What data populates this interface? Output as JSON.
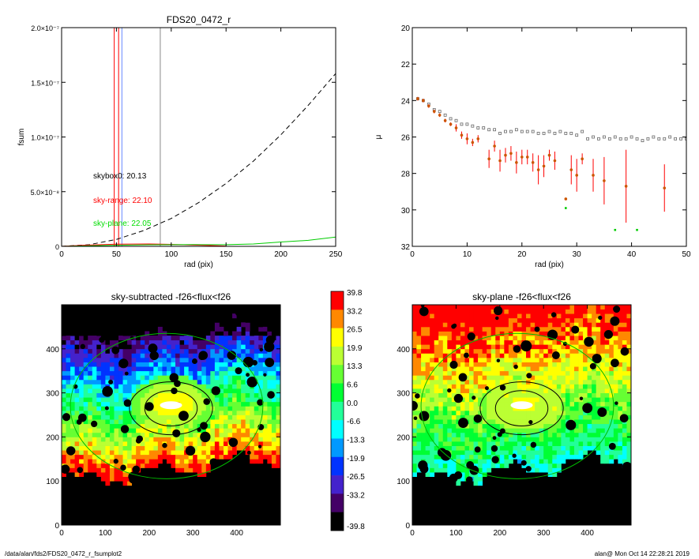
{
  "footer": {
    "path": "/data/alan/fds2/FDS20_0472_r_fsumplot2",
    "user_time": "alan@  Mon Oct 14 22:28:21 2019"
  },
  "chart_data": [
    {
      "type": "line",
      "title": "FDS20_0472_r",
      "xlabel": "rad (pix)",
      "ylabel": "fsum",
      "xlim": [
        0,
        250
      ],
      "ylim": [
        0,
        2e-07
      ],
      "x_ticks": [
        "0",
        "50",
        "100",
        "150",
        "200",
        "250"
      ],
      "y_ticks": [
        "0",
        "5.0×10⁻⁸",
        "1.0×10⁻⁷",
        "1.5×10⁻⁷",
        "2.0×10⁻⁷"
      ],
      "vlines": [
        {
          "x": 48,
          "color": "#ff0000"
        },
        {
          "x": 52,
          "color": "#ff0000"
        },
        {
          "x": 55,
          "color": "#6688ff"
        },
        {
          "x": 90,
          "color": "#888888"
        }
      ],
      "annotations": [
        {
          "text": "skybox0: 20.13",
          "color": "#000000"
        },
        {
          "text": "sky-range: 22.10",
          "color": "#ff0000"
        },
        {
          "text": "sky-plane: 22.05",
          "color": "#00dd00"
        }
      ],
      "series": [
        {
          "style": "dashed",
          "color": "#000000",
          "x": [
            0,
            25,
            50,
            75,
            100,
            125,
            150,
            175,
            200,
            225,
            250
          ],
          "y": [
            0,
            1.5e-09,
            6.3e-09,
            1.45e-08,
            2.55e-08,
            4e-08,
            5.75e-08,
            7.8e-08,
            1.02e-07,
            1.29e-07,
            1.58e-07
          ]
        },
        {
          "style": "solid",
          "color": "#ff0000",
          "x": [
            0,
            20,
            50,
            80,
            100,
            120,
            150
          ],
          "y": [
            0,
            1e-09,
            2e-09,
            2.2e-09,
            1.8e-09,
            1.2e-09,
            3e-10
          ]
        },
        {
          "style": "solid",
          "color": "#00cc00",
          "x": [
            0,
            40,
            80,
            120,
            150,
            175,
            200,
            225,
            250
          ],
          "y": [
            0,
            8e-10,
            1.4e-09,
            1.6e-09,
            1.5e-09,
            2.2e-09,
            4e-09,
            5.5e-09,
            8.5e-09
          ]
        }
      ]
    },
    {
      "type": "scatter",
      "title": "",
      "xlabel": "rad (pix)",
      "ylabel": "μ",
      "xlim": [
        0,
        50
      ],
      "ylim": [
        32,
        20
      ],
      "x_ticks": [
        "0",
        "10",
        "20",
        "30",
        "40",
        "50"
      ],
      "y_ticks": [
        "20",
        "22",
        "24",
        "26",
        "28",
        "30",
        "32"
      ],
      "series": [
        {
          "marker": "square-open",
          "color": "#666666",
          "x": [
            1,
            2,
            3,
            4,
            5,
            6,
            7,
            8,
            9,
            10,
            11,
            12,
            13,
            14,
            15,
            16,
            17,
            18,
            19,
            20,
            21,
            22,
            23,
            24,
            25,
            26,
            27,
            28,
            29,
            30,
            31,
            32,
            33,
            34,
            35,
            36,
            37,
            38,
            39,
            40,
            41,
            42,
            43,
            44,
            45,
            46,
            47,
            48,
            49,
            50
          ],
          "y": [
            23.9,
            24.0,
            24.2,
            24.5,
            24.6,
            24.8,
            25.0,
            25.1,
            25.3,
            25.3,
            25.4,
            25.5,
            25.5,
            25.6,
            25.6,
            25.8,
            25.7,
            25.7,
            25.6,
            25.7,
            25.7,
            25.7,
            25.8,
            25.8,
            25.7,
            25.8,
            25.7,
            25.8,
            25.8,
            25.9,
            25.7,
            26.1,
            26.0,
            26.1,
            26.0,
            26.1,
            26.0,
            26.1,
            26.1,
            26.0,
            26.1,
            26.2,
            26.1,
            26.0,
            26.1,
            26.1,
            26.0,
            26.1,
            26.1,
            26.1
          ]
        },
        {
          "marker": "circle-filled-errorbar",
          "color": "#ff0000",
          "x": [
            1,
            2,
            3,
            4,
            5,
            6,
            7,
            8,
            9,
            10,
            11,
            12,
            14,
            15,
            16,
            17,
            18,
            19,
            20,
            21,
            22,
            23,
            24,
            25,
            26,
            28,
            29,
            30,
            31,
            33,
            35,
            39,
            46
          ],
          "y": [
            23.9,
            24.0,
            24.3,
            24.6,
            24.8,
            25.1,
            25.3,
            25.5,
            25.9,
            26.1,
            26.3,
            26.1,
            27.2,
            26.5,
            27.3,
            27.0,
            26.9,
            27.4,
            27.1,
            27.1,
            27.4,
            27.8,
            27.6,
            27.0,
            27.3,
            29.4,
            27.8,
            28.1,
            27.2,
            28.1,
            28.4,
            28.7,
            28.8
          ],
          "err": [
            0.1,
            0.1,
            0.1,
            0.1,
            0.1,
            0.1,
            0.1,
            0.2,
            0.2,
            0.3,
            0.2,
            0.2,
            0.5,
            0.3,
            0.6,
            0.4,
            0.4,
            0.6,
            0.4,
            0.4,
            0.5,
            0.8,
            0.6,
            0.3,
            0.5,
            0,
            0.8,
            0.9,
            0.3,
            0.9,
            1.3,
            2.0,
            1.3
          ]
        },
        {
          "marker": "square-small",
          "color": "#00cc00",
          "x": [
            28,
            37,
            41
          ],
          "y": [
            29.9,
            31.1,
            31.1
          ]
        }
      ]
    },
    {
      "type": "heatmap",
      "title": "sky-subtracted -f26<flux<f26",
      "xlim": [
        0,
        500
      ],
      "ylim": [
        0,
        500
      ],
      "x_ticks": [
        "0",
        "100",
        "200",
        "300",
        "400"
      ],
      "y_ticks": [
        "0",
        "100",
        "200",
        "300",
        "400"
      ],
      "ellipses": [
        {
          "cx": 250,
          "cy": 265,
          "rx": 60,
          "ry": 40,
          "color": "#000000"
        },
        {
          "cx": 250,
          "cy": 265,
          "rx": 95,
          "ry": 60,
          "color": "#000000"
        },
        {
          "cx": 240,
          "cy": 270,
          "rx": 220,
          "ry": 165,
          "color": "#00bb00"
        }
      ]
    },
    {
      "type": "heatmap",
      "title": "sky-plane -f26<flux<f26",
      "xlim": [
        0,
        500
      ],
      "ylim": [
        0,
        500
      ],
      "x_ticks": [
        "0",
        "100",
        "200",
        "300",
        "400"
      ],
      "y_ticks": [
        "0",
        "100",
        "200",
        "300",
        "400"
      ],
      "ellipses": [
        {
          "cx": 250,
          "cy": 265,
          "rx": 60,
          "ry": 40,
          "color": "#000000"
        },
        {
          "cx": 250,
          "cy": 265,
          "rx": 95,
          "ry": 60,
          "color": "#000000"
        },
        {
          "cx": 240,
          "cy": 270,
          "rx": 220,
          "ry": 165,
          "color": "#00bb00"
        }
      ]
    }
  ],
  "colorbar": {
    "labels": [
      "39.8",
      "33.2",
      "26.5",
      "19.9",
      "13.3",
      "6.6",
      "0.0",
      "-6.6",
      "-13.3",
      "-19.9",
      "-26.5",
      "-33.2",
      "-39.8"
    ],
    "colors": [
      "#ff0000",
      "#ff8800",
      "#ffff00",
      "#bbff33",
      "#66ff33",
      "#00ff33",
      "#22ff99",
      "#00ffff",
      "#0099ff",
      "#0033ff",
      "#4422cc",
      "#440066",
      "#000000"
    ]
  }
}
